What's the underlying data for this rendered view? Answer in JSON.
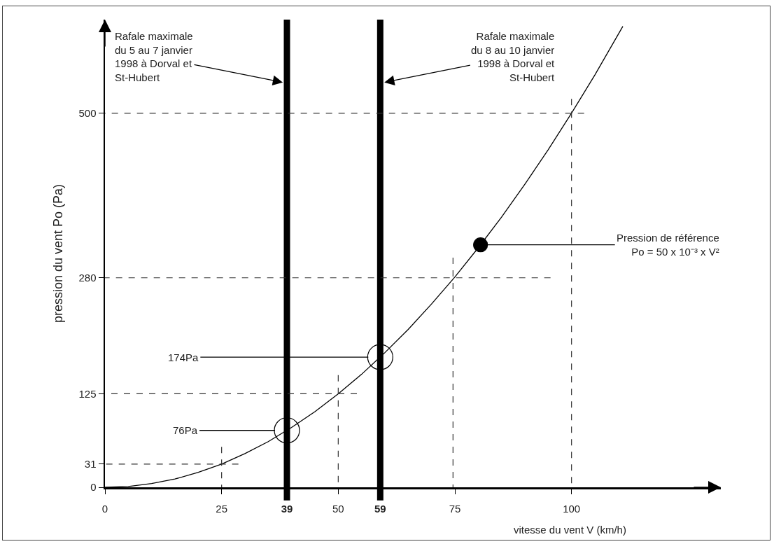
{
  "chart_data": {
    "type": "line",
    "xlabel": "vitesse du vent V (km/h)",
    "ylabel": "pression du vent Po (Pa)",
    "xlim": [
      0,
      132
    ],
    "ylim": [
      0,
      625
    ],
    "xticks": [
      0,
      25,
      39,
      50,
      59,
      75,
      100
    ],
    "yticks": [
      0,
      31,
      125,
      280,
      500
    ],
    "grid": false,
    "marker": "none",
    "series": [
      {
        "color": "#000000",
        "line_style": "solid",
        "x": [
          0,
          5,
          10,
          15,
          20,
          25,
          30,
          35,
          40,
          45,
          50,
          55,
          60,
          65,
          70,
          75,
          80,
          85,
          90,
          95,
          100,
          105,
          111
        ],
        "values": [
          0,
          1,
          5,
          11,
          20,
          31,
          45,
          61,
          80,
          101,
          125,
          151,
          180,
          211,
          245,
          281,
          320,
          361,
          405,
          451,
          500,
          551,
          616
        ]
      },
      {
        "color": "#333333",
        "line_style": "dashed",
        "x": [
          28.6,
          0
        ],
        "values": [
          31,
          31
        ]
      },
      {
        "color": "#333333",
        "line_style": "dashed",
        "x": [
          25,
          25
        ],
        "values": [
          54,
          0
        ]
      },
      {
        "color": "#333333",
        "line_style": "dashed",
        "x": [
          54,
          0
        ],
        "values": [
          125,
          125
        ]
      },
      {
        "color": "#333333",
        "line_style": "dashed",
        "x": [
          50,
          50
        ],
        "values": [
          150,
          0
        ]
      },
      {
        "color": "#333333",
        "line_style": "dashed",
        "x": [
          95.5,
          0
        ],
        "values": [
          280,
          280
        ]
      },
      {
        "color": "#333333",
        "line_style": "dashed",
        "x": [
          74.6,
          74.6
        ],
        "values": [
          307,
          0
        ]
      },
      {
        "color": "#333333",
        "line_style": "dashed",
        "x": [
          102.7,
          0
        ],
        "values": [
          500,
          500
        ]
      },
      {
        "color": "#333333",
        "line_style": "dashed",
        "x": [
          100,
          100
        ],
        "values": [
          519,
          0
        ]
      },
      {
        "type": "scatter",
        "marker": "circle-open",
        "color": "#000000",
        "x": [
          39,
          59
        ],
        "values": [
          76,
          174
        ]
      },
      {
        "type": "scatter",
        "marker": "circle",
        "color": "#000000",
        "x": [
          80.5
        ],
        "values": [
          324
        ]
      }
    ],
    "ref_lines": [
      {
        "axis": "x",
        "value": 39,
        "color": "#000000"
      },
      {
        "axis": "x",
        "value": 59,
        "color": "#000000"
      }
    ],
    "annotations": [
      {
        "text": "76Pa",
        "x": 39,
        "y": 76
      },
      {
        "text": "174Pa",
        "x": 59,
        "y": 174
      },
      {
        "text": "Pression de référence\nPo = 50 x 10⁻³ x V²",
        "x": 80.5,
        "y": 324
      },
      {
        "text": "Rafale maximale\ndu 5 au 7 janvier\n1998 à Dorval et\nSt-Hubert",
        "x": 39,
        "y": 540
      },
      {
        "text": "Rafale maximale\ndu 8 au 10 janvier\n1998 à Dorval et\nSt-Hubert",
        "x": 59,
        "y": 540
      }
    ]
  }
}
